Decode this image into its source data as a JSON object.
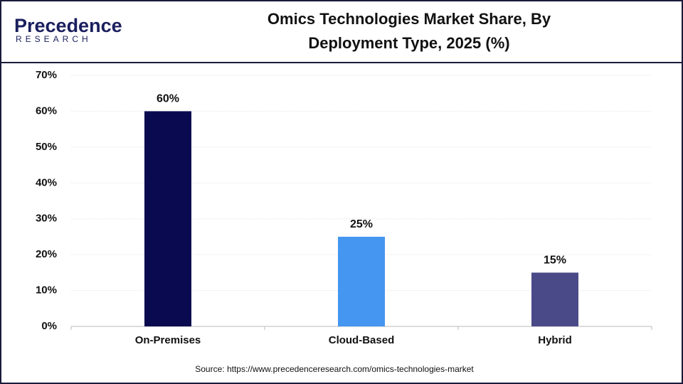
{
  "logo": {
    "name": "Precedence",
    "tagline": "RESEARCH"
  },
  "chart_data": {
    "type": "bar",
    "title": "Omics Technologies Market Share, By Deployment Type, 2025 (%)",
    "categories": [
      "On-Premises",
      "Cloud-Based",
      "Hybrid"
    ],
    "values": [
      60,
      25,
      15
    ],
    "value_labels": [
      "60%",
      "25%",
      "15%"
    ],
    "colors": [
      "#0a0a50",
      "#4596f0",
      "#4a4a88"
    ],
    "ylim": [
      0,
      70
    ],
    "yticks": [
      {
        "value": 0,
        "label": "0%"
      },
      {
        "value": 10,
        "label": "10%"
      },
      {
        "value": 20,
        "label": "20%"
      },
      {
        "value": 30,
        "label": "30%"
      },
      {
        "value": 40,
        "label": "40%"
      },
      {
        "value": 50,
        "label": "50%"
      },
      {
        "value": 60,
        "label": "60%"
      },
      {
        "value": 70,
        "label": "70%"
      }
    ],
    "grid": true,
    "source": "Source: https://www.precedenceresearch.com/omics-technologies-market"
  }
}
